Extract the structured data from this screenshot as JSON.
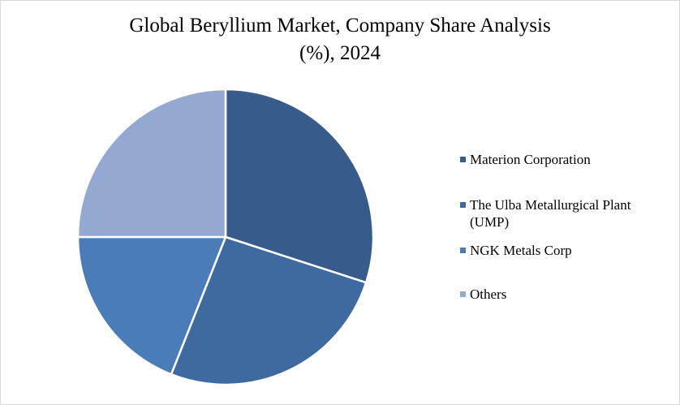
{
  "chart_data": {
    "type": "pie",
    "title": "Global Beryllium Market, Company Share Analysis (%), 2024",
    "title_lines": [
      "Global Beryllium Market, Company Share Analysis",
      "(%), 2024"
    ],
    "categories": [
      "Materion Corporation",
      "The Ulba Metallurgical Plant (UMP)",
      "NGK Metals Corp",
      "Others"
    ],
    "values": [
      30,
      26,
      19,
      25
    ],
    "colors": [
      "#375C8C",
      "#3F6AA0",
      "#4A7DB8",
      "#94A9D2"
    ],
    "legend_position": "right",
    "start_angle_deg": 0,
    "direction": "clockwise"
  }
}
